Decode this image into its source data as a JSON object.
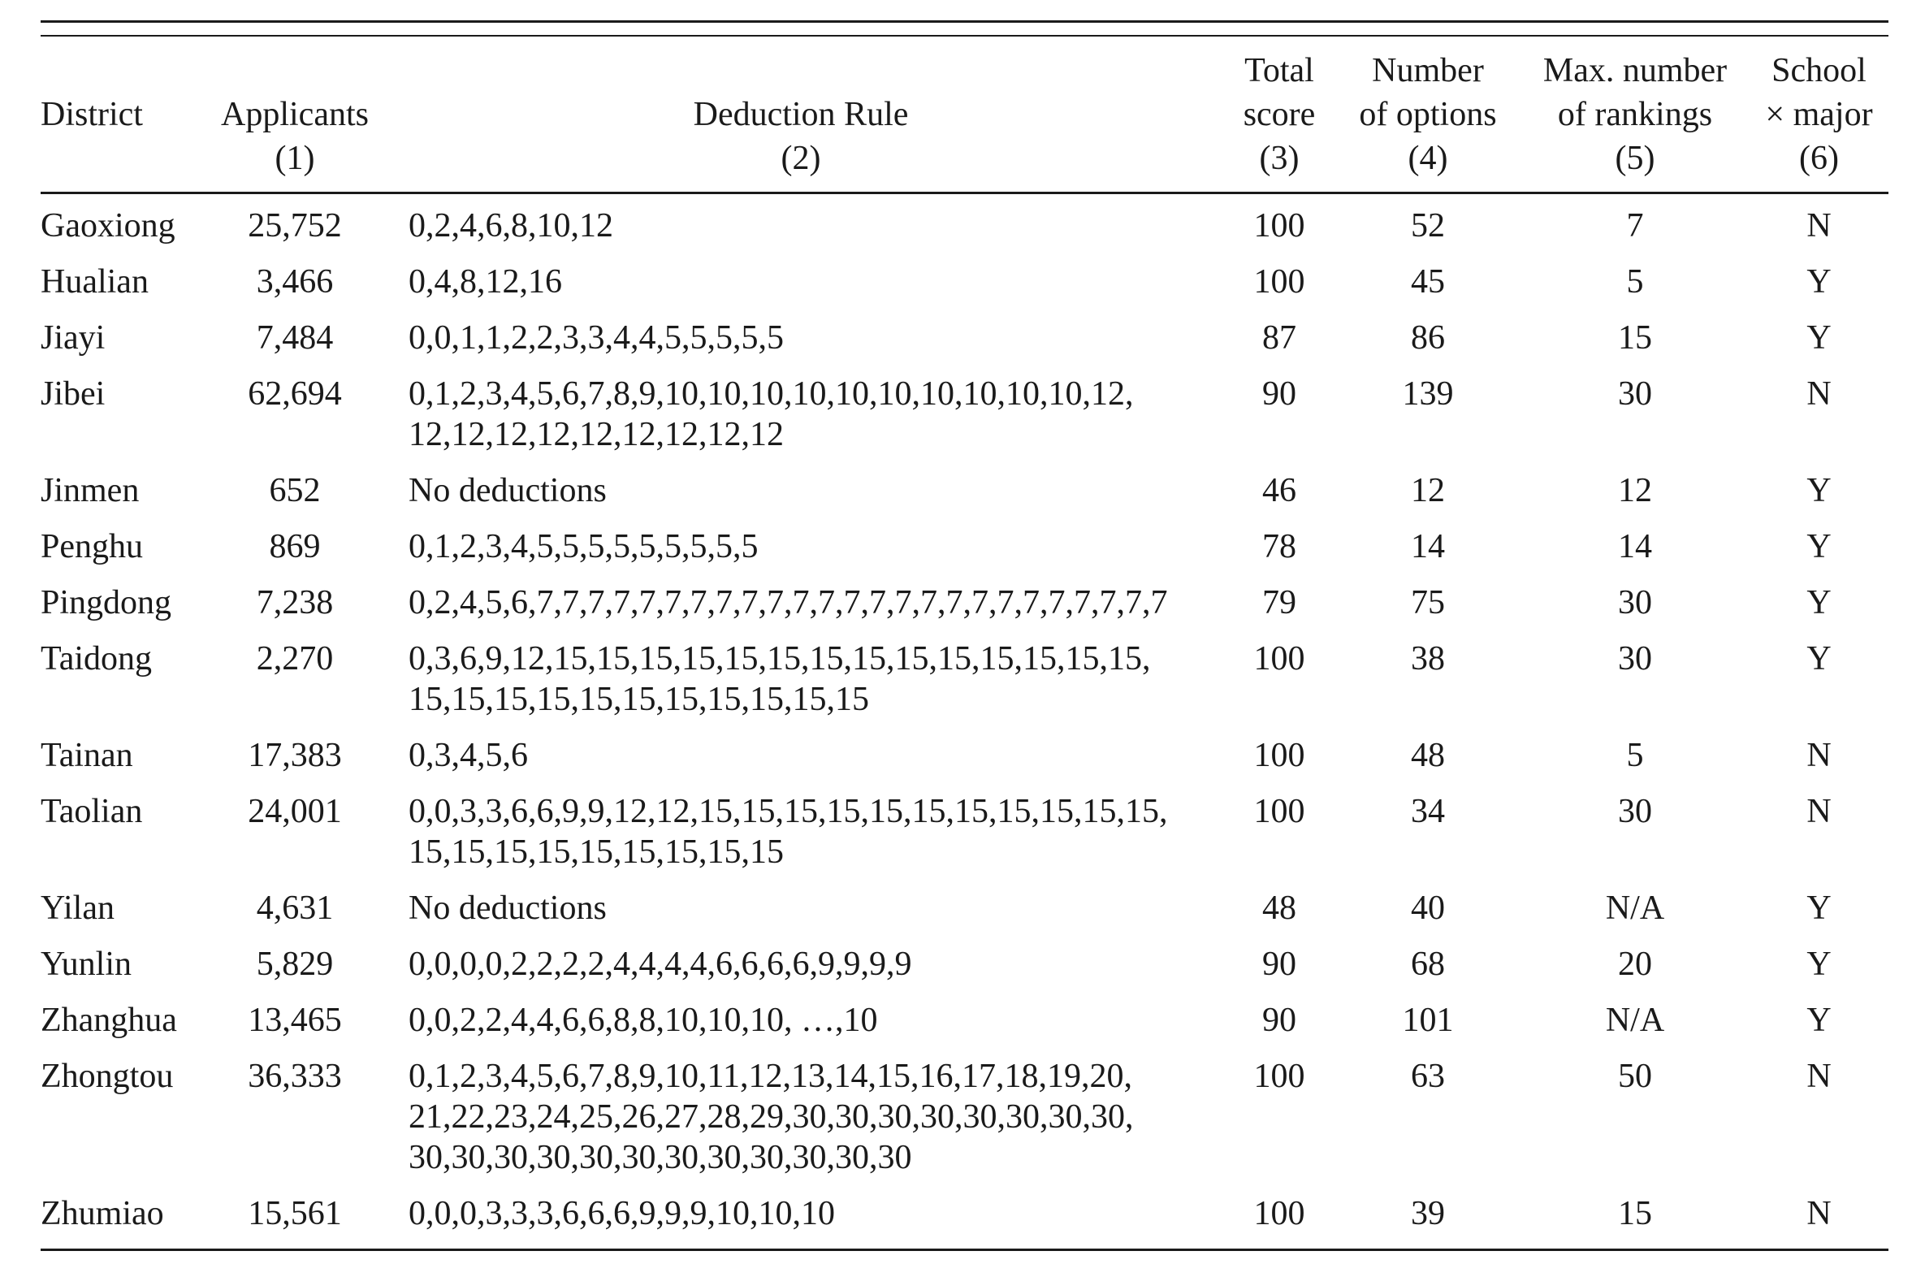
{
  "table": {
    "headers": [
      {
        "lines": [
          "",
          "District",
          ""
        ]
      },
      {
        "lines": [
          "",
          "Applicants",
          "(1)"
        ]
      },
      {
        "lines": [
          "",
          "Deduction Rule",
          "(2)"
        ]
      },
      {
        "lines": [
          "Total",
          "score",
          "(3)"
        ]
      },
      {
        "lines": [
          "Number",
          "of options",
          "(4)"
        ]
      },
      {
        "lines": [
          "Max. number",
          "of rankings",
          "(5)"
        ]
      },
      {
        "lines": [
          "School",
          "× major",
          "(6)"
        ]
      }
    ],
    "rows": [
      {
        "district": "Gaoxiong",
        "applicants": "25,752",
        "rule": [
          "0,2,4,6,8,10,12"
        ],
        "total": "100",
        "options": "52",
        "rankings": "7",
        "school_major": "N"
      },
      {
        "district": "Hualian",
        "applicants": "3,466",
        "rule": [
          "0,4,8,12,16"
        ],
        "total": "100",
        "options": "45",
        "rankings": "5",
        "school_major": "Y"
      },
      {
        "district": "Jiayi",
        "applicants": "7,484",
        "rule": [
          "0,0,1,1,2,2,3,3,4,4,5,5,5,5,5"
        ],
        "total": "87",
        "options": "86",
        "rankings": "15",
        "school_major": "Y"
      },
      {
        "district": "Jibei",
        "applicants": "62,694",
        "rule": [
          "0,1,2,3,4,5,6,7,8,9,10,10,10,10,10,10,10,10,10,10,12,",
          "12,12,12,12,12,12,12,12,12"
        ],
        "total": "90",
        "options": "139",
        "rankings": "30",
        "school_major": "N"
      },
      {
        "district": "Jinmen",
        "applicants": "652",
        "rule": [
          "No deductions"
        ],
        "total": "46",
        "options": "12",
        "rankings": "12",
        "school_major": "Y"
      },
      {
        "district": "Penghu",
        "applicants": "869",
        "rule": [
          "0,1,2,3,4,5,5,5,5,5,5,5,5,5"
        ],
        "total": "78",
        "options": "14",
        "rankings": "14",
        "school_major": "Y"
      },
      {
        "district": "Pingdong",
        "applicants": "7,238",
        "rule": [
          "0,2,4,5,6,7,7,7,7,7,7,7,7,7,7,7,7,7,7,7,7,7,7,7,7,7,7,7,7,7"
        ],
        "total": "79",
        "options": "75",
        "rankings": "30",
        "school_major": "Y"
      },
      {
        "district": "Taidong",
        "applicants": "2,270",
        "rule": [
          "0,3,6,9,12,15,15,15,15,15,15,15,15,15,15,15,15,15,15,",
          "15,15,15,15,15,15,15,15,15,15,15"
        ],
        "total": "100",
        "options": "38",
        "rankings": "30",
        "school_major": "Y"
      },
      {
        "district": "Tainan",
        "applicants": "17,383",
        "rule": [
          "0,3,4,5,6"
        ],
        "total": "100",
        "options": "48",
        "rankings": "5",
        "school_major": "N"
      },
      {
        "district": "Taolian",
        "applicants": "24,001",
        "rule": [
          "0,0,3,3,6,6,9,9,12,12,15,15,15,15,15,15,15,15,15,15,15,",
          "15,15,15,15,15,15,15,15,15"
        ],
        "total": "100",
        "options": "34",
        "rankings": "30",
        "school_major": "N"
      },
      {
        "district": "Yilan",
        "applicants": "4,631",
        "rule": [
          "No deductions"
        ],
        "total": "48",
        "options": "40",
        "rankings": "N/A",
        "school_major": "Y"
      },
      {
        "district": "Yunlin",
        "applicants": "5,829",
        "rule": [
          "0,0,0,0,2,2,2,2,4,4,4,4,6,6,6,6,9,9,9,9"
        ],
        "total": "90",
        "options": "68",
        "rankings": "20",
        "school_major": "Y"
      },
      {
        "district": "Zhanghua",
        "applicants": "13,465",
        "rule": [
          "0,0,2,2,4,4,6,6,8,8,10,10,10, …,10"
        ],
        "total": "90",
        "options": "101",
        "rankings": "N/A",
        "school_major": "Y"
      },
      {
        "district": "Zhongtou",
        "applicants": "36,333",
        "rule": [
          "0,1,2,3,4,5,6,7,8,9,10,11,12,13,14,15,16,17,18,19,20,",
          "21,22,23,24,25,26,27,28,29,30,30,30,30,30,30,30,30,",
          "30,30,30,30,30,30,30,30,30,30,30,30"
        ],
        "total": "100",
        "options": "63",
        "rankings": "50",
        "school_major": "N"
      },
      {
        "district": "Zhumiao",
        "applicants": "15,561",
        "rule": [
          "0,0,0,3,3,3,6,6,6,9,9,9,10,10,10"
        ],
        "total": "100",
        "options": "39",
        "rankings": "15",
        "school_major": "N"
      }
    ]
  }
}
